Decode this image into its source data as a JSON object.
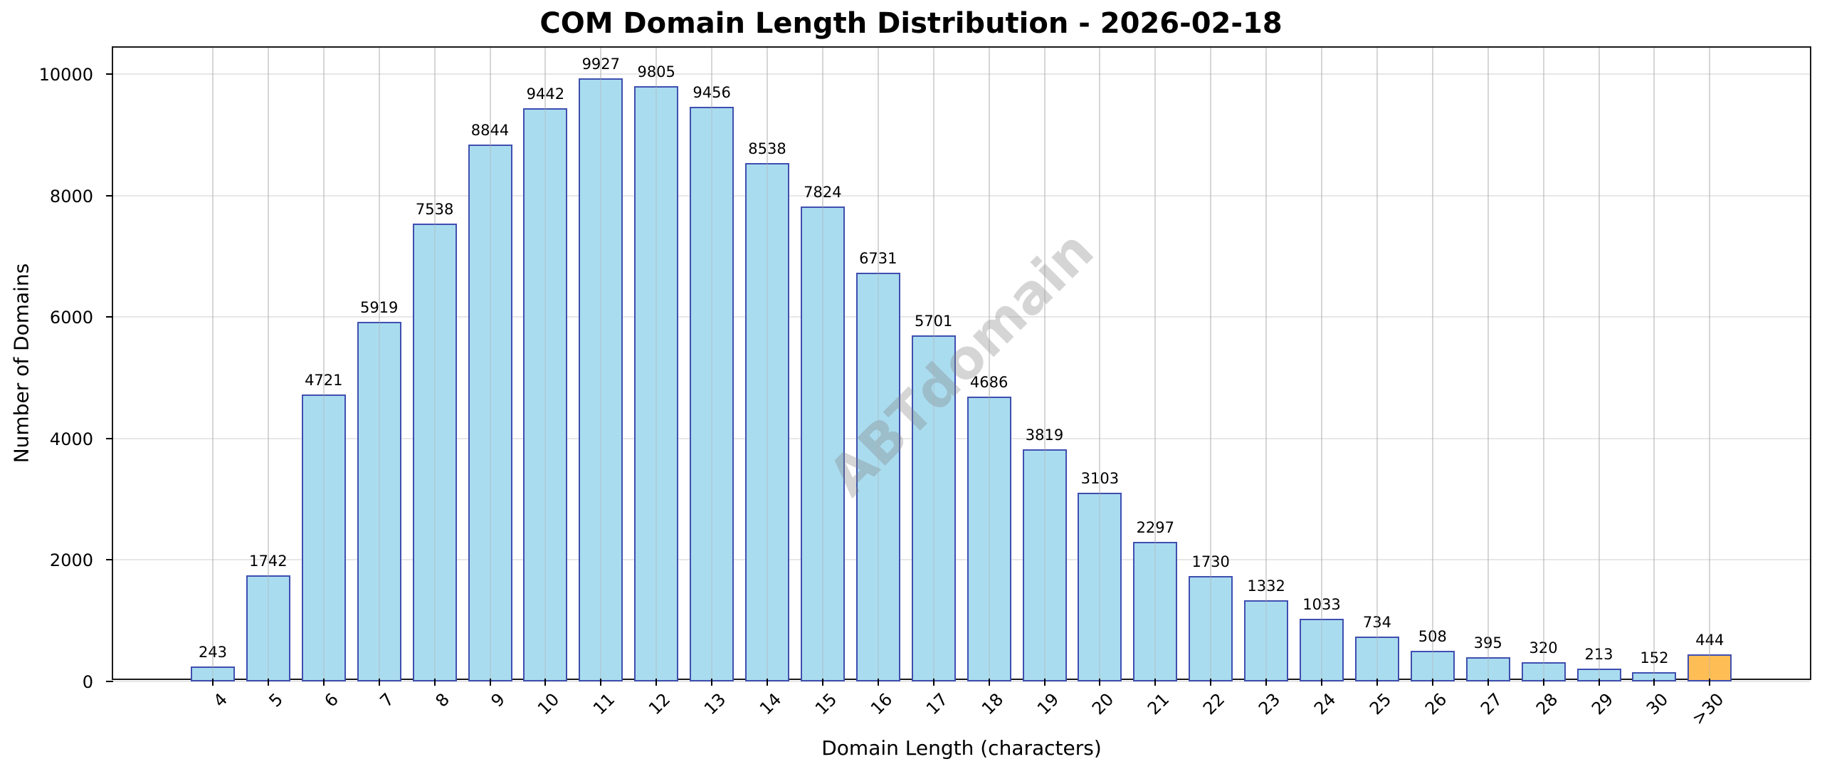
{
  "chart_data": {
    "type": "bar",
    "title": "COM Domain Length Distribution - 2026-02-18",
    "xlabel": "Domain Length (characters)",
    "ylabel": "Number of Domains",
    "ylim": [
      0,
      10400
    ],
    "yticks": [
      0,
      2000,
      4000,
      6000,
      8000,
      10000
    ],
    "grid": true,
    "legend": null,
    "watermark": "ABTdomain",
    "categories": [
      "4",
      "5",
      "6",
      "7",
      "8",
      "9",
      "10",
      "11",
      "12",
      "13",
      "14",
      "15",
      "16",
      "17",
      "18",
      "19",
      "20",
      "21",
      "22",
      "23",
      "24",
      "25",
      "26",
      "27",
      "28",
      "29",
      "30",
      ">30"
    ],
    "values": [
      243,
      1742,
      4721,
      5919,
      7538,
      8844,
      9442,
      9927,
      9805,
      9456,
      8538,
      7824,
      6731,
      5701,
      4686,
      3819,
      3103,
      2297,
      1730,
      1332,
      1033,
      734,
      508,
      395,
      320,
      213,
      152,
      444
    ],
    "colors": {
      "bar_fill": "#aadcef",
      "bar_edge": "#3f4fb0",
      "highlight_fill": "#ffbe55",
      "highlight_category": ">30"
    }
  }
}
